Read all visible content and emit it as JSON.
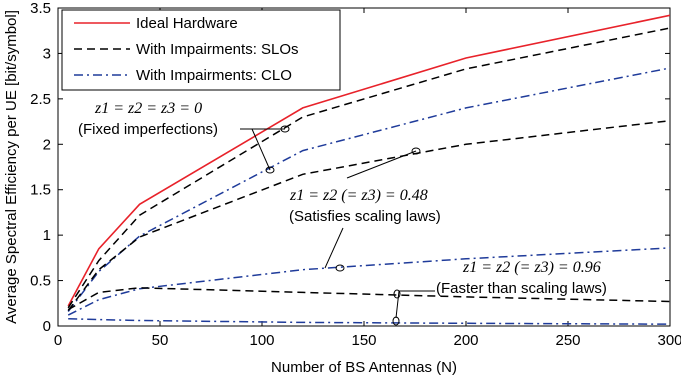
{
  "chart_data": {
    "type": "line",
    "xlabel": "Number of BS Antennas (N)",
    "ylabel": "Average Spectral Efficiency per UE [bit/symbol]",
    "xlim": [
      0,
      300
    ],
    "ylim": [
      0,
      3.5
    ],
    "x_ticks": [
      "0",
      "50",
      "100",
      "150",
      "200",
      "250",
      "300"
    ],
    "y_ticks": [
      "0",
      "0.5",
      "1",
      "1.5",
      "2",
      "2.5",
      "3",
      "3.5"
    ],
    "grid": false,
    "legend_position": "top-left",
    "x": [
      5,
      20,
      40,
      120,
      200,
      300
    ],
    "series": [
      {
        "name": "Ideal Hardware",
        "style": "solid",
        "color": "#e8222a",
        "values": [
          0.22,
          0.85,
          1.34,
          2.4,
          2.95,
          3.42
        ]
      },
      {
        "name": "With Impairments: SLOs",
        "style": "dashed",
        "color": "#000000",
        "group": "z=0",
        "values": [
          0.2,
          0.72,
          1.22,
          2.3,
          2.83,
          3.28
        ]
      },
      {
        "name": "With Impairments: CLO",
        "style": "dashdot",
        "color": "#1f3b9a",
        "group": "z=0",
        "values": [
          0.16,
          0.6,
          0.99,
          1.93,
          2.4,
          2.84
        ]
      },
      {
        "style": "dashed",
        "color": "#000000",
        "group": "z=0.48",
        "values": [
          0.17,
          0.62,
          0.98,
          1.67,
          2.0,
          2.26
        ]
      },
      {
        "style": "dashdot",
        "color": "#1f3b9a",
        "group": "z=0.48",
        "values": [
          0.12,
          0.29,
          0.41,
          0.62,
          0.74,
          0.86
        ]
      },
      {
        "style": "dashed",
        "color": "#000000",
        "group": "z=0.96",
        "values": [
          0.18,
          0.37,
          0.42,
          0.37,
          0.32,
          0.27
        ]
      },
      {
        "style": "dashdot",
        "color": "#1f3b9a",
        "group": "z=0.96",
        "values": [
          0.08,
          0.07,
          0.06,
          0.04,
          0.03,
          0.02
        ]
      }
    ],
    "annotations": [
      {
        "math": "z1 = z2 = z3 = 0",
        "text": "(Fixed imperfections)"
      },
      {
        "math": "z1 = z2 (= z3) = 0.48",
        "text": "(Satisfies scaling laws)"
      },
      {
        "math": "z1 = z2 (= z3) = 0.96",
        "text": "(Faster than scaling laws)"
      }
    ]
  }
}
